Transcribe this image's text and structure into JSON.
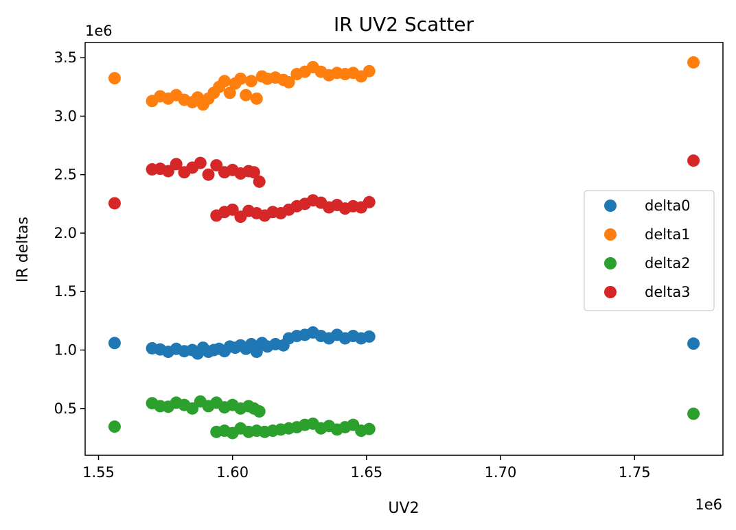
{
  "chart_data": {
    "type": "scatter",
    "title": "IR UV2 Scatter",
    "xlabel": "UV2",
    "ylabel": "IR deltas",
    "x_offset_text": "1e6",
    "y_offset_text": "1e6",
    "xlim": [
      1.545,
      1.783
    ],
    "ylim": [
      0.1,
      3.63
    ],
    "xticks": [
      {
        "value": 1.55,
        "label": "1.55"
      },
      {
        "value": 1.6,
        "label": "1.60"
      },
      {
        "value": 1.65,
        "label": "1.65"
      },
      {
        "value": 1.7,
        "label": "1.70"
      },
      {
        "value": 1.75,
        "label": "1.75"
      }
    ],
    "yticks": [
      {
        "value": 0.5,
        "label": "0.5"
      },
      {
        "value": 1.0,
        "label": "1.0"
      },
      {
        "value": 1.5,
        "label": "1.5"
      },
      {
        "value": 2.0,
        "label": "2.0"
      },
      {
        "value": 2.5,
        "label": "2.5"
      },
      {
        "value": 3.0,
        "label": "3.0"
      },
      {
        "value": 3.5,
        "label": "3.5"
      }
    ],
    "grid": false,
    "legend_position": "center-right",
    "series": [
      {
        "name": "delta0",
        "color": "#1f77b4",
        "points": [
          [
            1.556,
            1.06
          ],
          [
            1.772,
            1.055
          ],
          [
            1.57,
            1.015
          ],
          [
            1.573,
            1.005
          ],
          [
            1.576,
            0.985
          ],
          [
            1.579,
            1.01
          ],
          [
            1.582,
            0.99
          ],
          [
            1.585,
            1.0
          ],
          [
            1.587,
            0.97
          ],
          [
            1.589,
            1.02
          ],
          [
            1.591,
            0.985
          ],
          [
            1.593,
            1.0
          ],
          [
            1.595,
            1.01
          ],
          [
            1.597,
            0.99
          ],
          [
            1.599,
            1.03
          ],
          [
            1.601,
            1.02
          ],
          [
            1.603,
            1.04
          ],
          [
            1.605,
            1.01
          ],
          [
            1.607,
            1.05
          ],
          [
            1.609,
            0.985
          ],
          [
            1.611,
            1.06
          ],
          [
            1.613,
            1.03
          ],
          [
            1.616,
            1.05
          ],
          [
            1.619,
            1.04
          ],
          [
            1.621,
            1.1
          ],
          [
            1.624,
            1.12
          ],
          [
            1.627,
            1.13
          ],
          [
            1.63,
            1.15
          ],
          [
            1.633,
            1.12
          ],
          [
            1.636,
            1.1
          ],
          [
            1.639,
            1.13
          ],
          [
            1.642,
            1.1
          ],
          [
            1.645,
            1.12
          ],
          [
            1.648,
            1.1
          ],
          [
            1.651,
            1.115
          ]
        ]
      },
      {
        "name": "delta1",
        "color": "#ff7f0e",
        "points": [
          [
            1.556,
            3.325
          ],
          [
            1.772,
            3.46
          ],
          [
            1.57,
            3.13
          ],
          [
            1.573,
            3.17
          ],
          [
            1.576,
            3.15
          ],
          [
            1.579,
            3.18
          ],
          [
            1.582,
            3.14
          ],
          [
            1.585,
            3.12
          ],
          [
            1.587,
            3.16
          ],
          [
            1.589,
            3.1
          ],
          [
            1.591,
            3.15
          ],
          [
            1.593,
            3.2
          ],
          [
            1.595,
            3.25
          ],
          [
            1.597,
            3.3
          ],
          [
            1.599,
            3.2
          ],
          [
            1.601,
            3.28
          ],
          [
            1.603,
            3.32
          ],
          [
            1.605,
            3.18
          ],
          [
            1.607,
            3.3
          ],
          [
            1.609,
            3.15
          ],
          [
            1.611,
            3.34
          ],
          [
            1.613,
            3.32
          ],
          [
            1.616,
            3.33
          ],
          [
            1.619,
            3.31
          ],
          [
            1.621,
            3.29
          ],
          [
            1.624,
            3.36
          ],
          [
            1.627,
            3.38
          ],
          [
            1.63,
            3.42
          ],
          [
            1.633,
            3.38
          ],
          [
            1.636,
            3.35
          ],
          [
            1.639,
            3.37
          ],
          [
            1.642,
            3.36
          ],
          [
            1.645,
            3.37
          ],
          [
            1.648,
            3.34
          ],
          [
            1.651,
            3.385
          ]
        ]
      },
      {
        "name": "delta2",
        "color": "#2ca02c",
        "points": [
          [
            1.556,
            0.345
          ],
          [
            1.772,
            0.455
          ],
          [
            1.57,
            0.545
          ],
          [
            1.573,
            0.52
          ],
          [
            1.576,
            0.515
          ],
          [
            1.579,
            0.55
          ],
          [
            1.582,
            0.53
          ],
          [
            1.585,
            0.5
          ],
          [
            1.588,
            0.56
          ],
          [
            1.591,
            0.52
          ],
          [
            1.594,
            0.55
          ],
          [
            1.597,
            0.51
          ],
          [
            1.6,
            0.53
          ],
          [
            1.603,
            0.5
          ],
          [
            1.606,
            0.52
          ],
          [
            1.608,
            0.5
          ],
          [
            1.61,
            0.475
          ],
          [
            1.594,
            0.3
          ],
          [
            1.597,
            0.31
          ],
          [
            1.6,
            0.29
          ],
          [
            1.603,
            0.33
          ],
          [
            1.606,
            0.3
          ],
          [
            1.609,
            0.31
          ],
          [
            1.612,
            0.3
          ],
          [
            1.615,
            0.31
          ],
          [
            1.618,
            0.32
          ],
          [
            1.621,
            0.33
          ],
          [
            1.624,
            0.34
          ],
          [
            1.627,
            0.36
          ],
          [
            1.63,
            0.37
          ],
          [
            1.633,
            0.33
          ],
          [
            1.636,
            0.35
          ],
          [
            1.639,
            0.32
          ],
          [
            1.642,
            0.34
          ],
          [
            1.645,
            0.36
          ],
          [
            1.648,
            0.31
          ],
          [
            1.651,
            0.325
          ]
        ]
      },
      {
        "name": "delta3",
        "color": "#d62728",
        "points": [
          [
            1.556,
            2.255
          ],
          [
            1.772,
            2.62
          ],
          [
            1.57,
            2.545
          ],
          [
            1.573,
            2.55
          ],
          [
            1.576,
            2.53
          ],
          [
            1.579,
            2.59
          ],
          [
            1.582,
            2.52
          ],
          [
            1.585,
            2.56
          ],
          [
            1.588,
            2.6
          ],
          [
            1.591,
            2.5
          ],
          [
            1.594,
            2.58
          ],
          [
            1.597,
            2.52
          ],
          [
            1.6,
            2.54
          ],
          [
            1.603,
            2.51
          ],
          [
            1.606,
            2.53
          ],
          [
            1.608,
            2.52
          ],
          [
            1.61,
            2.44
          ],
          [
            1.594,
            2.15
          ],
          [
            1.597,
            2.18
          ],
          [
            1.6,
            2.2
          ],
          [
            1.603,
            2.14
          ],
          [
            1.606,
            2.19
          ],
          [
            1.609,
            2.17
          ],
          [
            1.612,
            2.15
          ],
          [
            1.615,
            2.18
          ],
          [
            1.618,
            2.17
          ],
          [
            1.621,
            2.2
          ],
          [
            1.624,
            2.23
          ],
          [
            1.627,
            2.25
          ],
          [
            1.63,
            2.28
          ],
          [
            1.633,
            2.26
          ],
          [
            1.636,
            2.22
          ],
          [
            1.639,
            2.24
          ],
          [
            1.642,
            2.21
          ],
          [
            1.645,
            2.23
          ],
          [
            1.648,
            2.22
          ],
          [
            1.651,
            2.265
          ]
        ]
      }
    ]
  }
}
